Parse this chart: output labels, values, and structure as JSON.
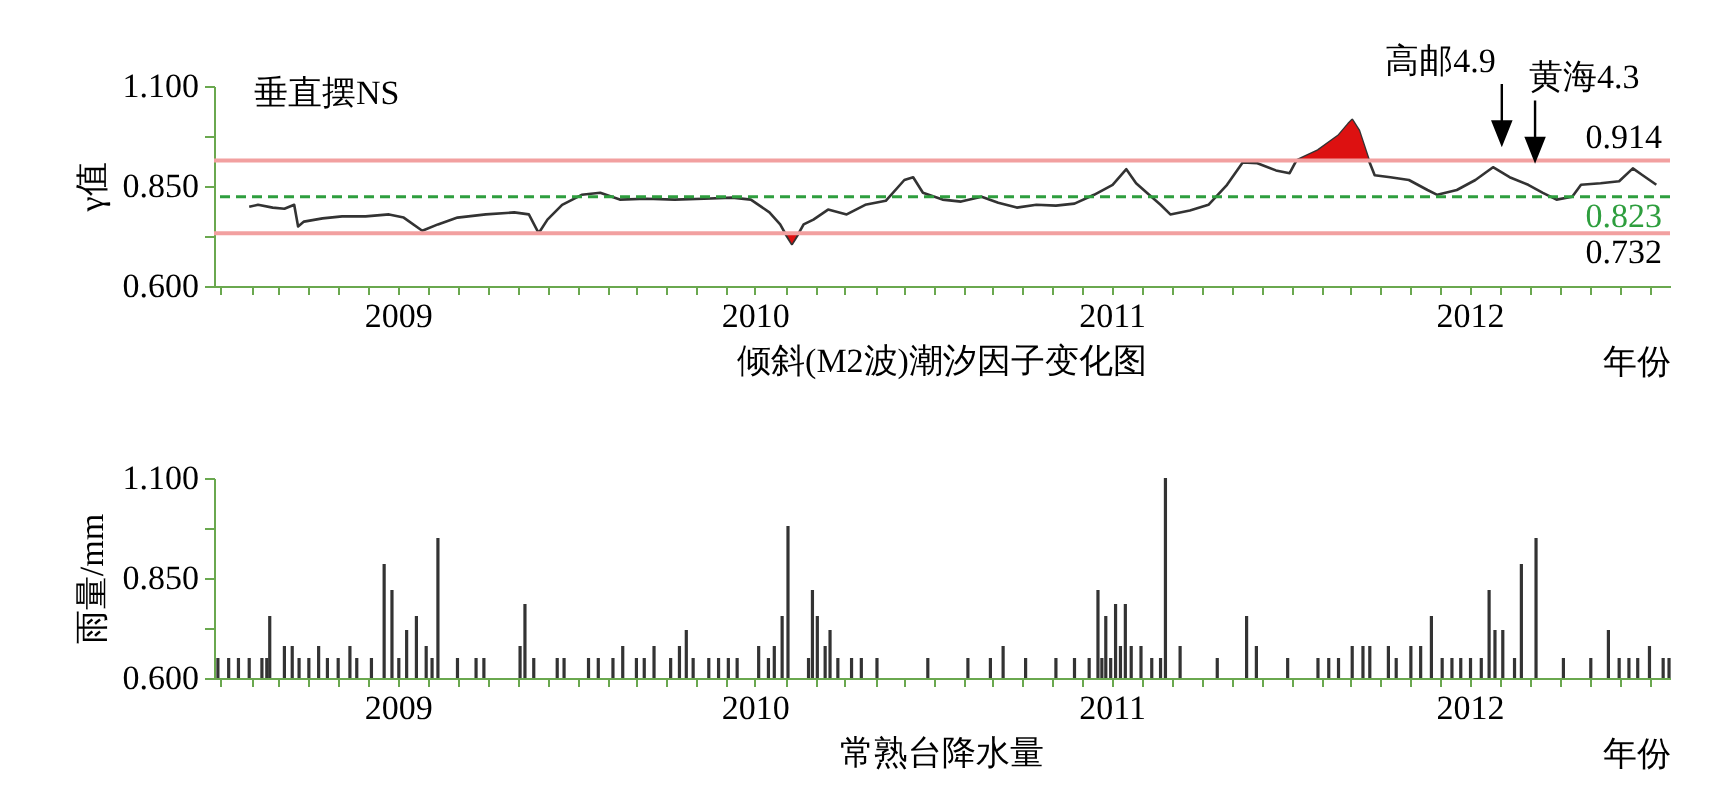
{
  "chart_data": [
    {
      "type": "line",
      "title": "倾斜(M2波)潮汐因子变化图",
      "xlabel": "年份",
      "ylabel": "γ值",
      "annotations": [
        "垂直摆NS",
        {
          "text": "高邮4.9",
          "x": "2012-08-03",
          "y": 0.885
        },
        {
          "text": "黄海4.3",
          "x": "2012-09-06",
          "y": 0.844
        }
      ],
      "xlim": [
        "2008-12-25",
        "2013-01-22"
      ],
      "xticks": [
        {
          "value": "2009-01-01",
          "label": null
        },
        {
          "value": "2009-02-01",
          "label": null
        },
        {
          "value": "2009-03-01",
          "label": null
        },
        {
          "value": "2009-04-01",
          "label": null
        },
        {
          "value": "2009-05-01",
          "label": null
        },
        {
          "value": "2009-06-01",
          "label": null
        },
        {
          "value": "2009-07-01",
          "label": "2009"
        },
        {
          "value": "2009-08-01",
          "label": null
        },
        {
          "value": "2009-09-01",
          "label": null
        },
        {
          "value": "2009-10-01",
          "label": null
        },
        {
          "value": "2009-11-01",
          "label": null
        },
        {
          "value": "2009-12-01",
          "label": null
        },
        {
          "value": "2010-01-01",
          "label": null
        },
        {
          "value": "2010-02-01",
          "label": null
        },
        {
          "value": "2010-03-01",
          "label": null
        },
        {
          "value": "2010-04-01",
          "label": null
        },
        {
          "value": "2010-05-01",
          "label": null
        },
        {
          "value": "2010-06-01",
          "label": null
        },
        {
          "value": "2010-07-01",
          "label": "2010"
        },
        {
          "value": "2010-08-01",
          "label": null
        },
        {
          "value": "2010-09-01",
          "label": null
        },
        {
          "value": "2010-10-01",
          "label": null
        },
        {
          "value": "2010-11-01",
          "label": null
        },
        {
          "value": "2010-12-01",
          "label": null
        },
        {
          "value": "2011-01-01",
          "label": null
        },
        {
          "value": "2011-02-01",
          "label": null
        },
        {
          "value": "2011-03-01",
          "label": null
        },
        {
          "value": "2011-04-01",
          "label": null
        },
        {
          "value": "2011-05-01",
          "label": null
        },
        {
          "value": "2011-06-01",
          "label": null
        },
        {
          "value": "2011-07-01",
          "label": "2011"
        },
        {
          "value": "2011-08-01",
          "label": null
        },
        {
          "value": "2011-09-01",
          "label": null
        },
        {
          "value": "2011-10-01",
          "label": null
        },
        {
          "value": "2011-11-01",
          "label": null
        },
        {
          "value": "2011-12-01",
          "label": null
        },
        {
          "value": "2012-01-01",
          "label": null
        },
        {
          "value": "2012-02-01",
          "label": null
        },
        {
          "value": "2012-03-01",
          "label": null
        },
        {
          "value": "2012-04-01",
          "label": null
        },
        {
          "value": "2012-05-01",
          "label": null
        },
        {
          "value": "2012-06-01",
          "label": null
        },
        {
          "value": "2012-07-01",
          "label": "2012"
        },
        {
          "value": "2012-08-01",
          "label": null
        },
        {
          "value": "2012-09-01",
          "label": null
        },
        {
          "value": "2012-10-01",
          "label": null
        },
        {
          "value": "2012-11-01",
          "label": null
        },
        {
          "value": "2012-12-01",
          "label": null
        },
        {
          "value": "2013-01-01",
          "label": null
        }
      ],
      "ylim": [
        0.6,
        1.1
      ],
      "yticks": [
        {
          "value": 0.6,
          "label": "0.600"
        },
        {
          "value": 0.725,
          "label": null
        },
        {
          "value": 0.85,
          "label": "0.850"
        },
        {
          "value": 0.975,
          "label": null
        },
        {
          "value": 1.1,
          "label": "1.100"
        }
      ],
      "ref_lines": [
        {
          "axis": "y",
          "value": 0.914,
          "label": "0.914",
          "color": "#f2a0a0"
        },
        {
          "axis": "y",
          "value": 0.823,
          "label": "0.823",
          "color": "#2e9e3e",
          "line_style": "dashed"
        },
        {
          "axis": "y",
          "value": 0.732,
          "label": "0.732",
          "color": "#f2a0a0"
        }
      ],
      "series": [
        {
          "type": "line",
          "color": "#333333",
          "x": [
            "2009-01-30",
            "2009-02-08",
            "2009-02-23",
            "2009-03-07",
            "2009-03-17",
            "2009-03-21",
            "2009-03-27",
            "2009-04-15",
            "2009-05-05",
            "2009-05-29",
            "2009-06-22",
            "2009-07-07",
            "2009-07-26",
            "2009-08-11",
            "2009-08-31",
            "2009-09-29",
            "2009-10-28",
            "2009-11-12",
            "2009-11-22",
            "2009-12-01",
            "2009-12-16",
            "2010-01-05",
            "2010-01-24",
            "2010-02-13",
            "2010-03-12",
            "2010-04-10",
            "2010-05-10",
            "2010-06-08",
            "2010-06-27",
            "2010-07-16",
            "2010-07-27",
            "2010-08-01",
            "2010-08-08",
            "2010-08-15",
            "2010-08-20",
            "2010-08-30",
            "2010-09-14",
            "2010-10-03",
            "2010-10-22",
            "2010-11-12",
            "2010-12-01",
            "2010-12-10",
            "2010-12-20",
            "2011-01-09",
            "2011-01-28",
            "2011-02-18",
            "2011-03-07",
            "2011-03-26",
            "2011-04-15",
            "2011-05-05",
            "2011-05-24",
            "2011-06-13",
            "2011-07-02",
            "2011-07-16",
            "2011-07-26",
            "2011-08-06",
            "2011-08-20",
            "2011-08-30",
            "2011-09-19",
            "2011-10-08",
            "2011-10-27",
            "2011-11-12",
            "2011-11-27",
            "2011-12-16",
            "2011-12-30",
            "2012-01-06",
            "2012-01-28",
            "2012-02-18",
            "2012-02-28",
            "2012-03-03",
            "2012-03-10",
            "2012-03-20",
            "2012-03-26",
            "2012-04-11",
            "2012-04-30",
            "2012-05-19",
            "2012-05-29",
            "2012-06-18",
            "2012-07-07",
            "2012-07-25",
            "2012-08-11",
            "2012-08-30",
            "2012-09-14",
            "2012-09-28",
            "2012-10-14",
            "2012-10-23",
            "2012-11-12",
            "2012-12-01",
            "2012-12-15",
            "2012-12-25",
            "2013-01-08"
          ],
          "values": [
            0.798,
            0.803,
            0.796,
            0.793,
            0.803,
            0.749,
            0.761,
            0.769,
            0.774,
            0.774,
            0.779,
            0.771,
            0.738,
            0.754,
            0.771,
            0.779,
            0.784,
            0.779,
            0.732,
            0.766,
            0.803,
            0.828,
            0.833,
            0.816,
            0.818,
            0.816,
            0.818,
            0.821,
            0.816,
            0.784,
            0.754,
            0.732,
            0.705,
            0.732,
            0.754,
            0.766,
            0.791,
            0.779,
            0.803,
            0.813,
            0.865,
            0.872,
            0.833,
            0.816,
            0.811,
            0.823,
            0.808,
            0.796,
            0.803,
            0.801,
            0.806,
            0.828,
            0.853,
            0.892,
            0.857,
            0.833,
            0.803,
            0.779,
            0.789,
            0.803,
            0.853,
            0.909,
            0.907,
            0.889,
            0.882,
            0.914,
            0.939,
            0.976,
            1.005,
            1.015,
            0.988,
            0.914,
            0.877,
            0.872,
            0.865,
            0.84,
            0.828,
            0.84,
            0.865,
            0.897,
            0.872,
            0.853,
            0.833,
            0.816,
            0.823,
            0.853,
            0.857,
            0.862,
            0.894,
            0.877,
            0.853
          ]
        },
        {
          "type": "area",
          "color": "#dd1111",
          "x": [
            "2012-01-06",
            "2012-01-28",
            "2012-02-18",
            "2012-02-28",
            "2012-03-03",
            "2012-03-10",
            "2012-03-20"
          ],
          "values": [
            0.914,
            0.939,
            0.976,
            1.005,
            1.015,
            0.988,
            0.914
          ]
        },
        {
          "type": "scatter",
          "color": "#dd1111",
          "marker": "triangle",
          "x": [
            "2010-08-08"
          ],
          "values": [
            0.72
          ]
        }
      ]
    },
    {
      "type": "bar",
      "title": "常熟台降水量",
      "xlabel": "年份",
      "ylabel": "雨量/mm",
      "color": "#333333",
      "xlim": [
        "2008-12-25",
        "2013-01-22"
      ],
      "xticks": [
        {
          "value": "2009-01-01",
          "label": null
        },
        {
          "value": "2009-02-01",
          "label": null
        },
        {
          "value": "2009-03-01",
          "label": null
        },
        {
          "value": "2009-04-01",
          "label": null
        },
        {
          "value": "2009-05-01",
          "label": null
        },
        {
          "value": "2009-06-01",
          "label": null
        },
        {
          "value": "2009-07-01",
          "label": "2009"
        },
        {
          "value": "2009-08-01",
          "label": null
        },
        {
          "value": "2009-09-01",
          "label": null
        },
        {
          "value": "2009-10-01",
          "label": null
        },
        {
          "value": "2009-11-01",
          "label": null
        },
        {
          "value": "2009-12-01",
          "label": null
        },
        {
          "value": "2010-01-01",
          "label": null
        },
        {
          "value": "2010-02-01",
          "label": null
        },
        {
          "value": "2010-03-01",
          "label": null
        },
        {
          "value": "2010-04-01",
          "label": null
        },
        {
          "value": "2010-05-01",
          "label": null
        },
        {
          "value": "2010-06-01",
          "label": null
        },
        {
          "value": "2010-07-01",
          "label": "2010"
        },
        {
          "value": "2010-08-01",
          "label": null
        },
        {
          "value": "2010-09-01",
          "label": null
        },
        {
          "value": "2010-10-01",
          "label": null
        },
        {
          "value": "2010-11-01",
          "label": null
        },
        {
          "value": "2010-12-01",
          "label": null
        },
        {
          "value": "2011-01-01",
          "label": null
        },
        {
          "value": "2011-02-01",
          "label": null
        },
        {
          "value": "2011-03-01",
          "label": null
        },
        {
          "value": "2011-04-01",
          "label": null
        },
        {
          "value": "2011-05-01",
          "label": null
        },
        {
          "value": "2011-06-01",
          "label": null
        },
        {
          "value": "2011-07-01",
          "label": "2011"
        },
        {
          "value": "2011-08-01",
          "label": null
        },
        {
          "value": "2011-09-01",
          "label": null
        },
        {
          "value": "2011-10-01",
          "label": null
        },
        {
          "value": "2011-11-01",
          "label": null
        },
        {
          "value": "2011-12-01",
          "label": null
        },
        {
          "value": "2012-01-01",
          "label": null
        },
        {
          "value": "2012-02-01",
          "label": null
        },
        {
          "value": "2012-03-01",
          "label": null
        },
        {
          "value": "2012-04-01",
          "label": null
        },
        {
          "value": "2012-05-01",
          "label": null
        },
        {
          "value": "2012-06-01",
          "label": null
        },
        {
          "value": "2012-07-01",
          "label": "2012"
        },
        {
          "value": "2012-08-01",
          "label": null
        },
        {
          "value": "2012-09-01",
          "label": null
        },
        {
          "value": "2012-10-01",
          "label": null
        },
        {
          "value": "2012-11-01",
          "label": null
        },
        {
          "value": "2012-12-01",
          "label": null
        },
        {
          "value": "2013-01-01",
          "label": null
        }
      ],
      "ylim": [
        0.6,
        1.1
      ],
      "yticks": [
        {
          "value": 0.6,
          "label": "0.600"
        },
        {
          "value": 0.725,
          "label": null
        },
        {
          "value": 0.85,
          "label": "0.850"
        },
        {
          "value": 0.975,
          "label": null
        },
        {
          "value": 1.1,
          "label": "1.100"
        }
      ],
      "x": [
        "2008-12-29",
        "2009-01-09",
        "2009-01-19",
        "2009-01-30",
        "2009-02-12",
        "2009-02-17",
        "2009-02-20",
        "2009-03-07",
        "2009-03-15",
        "2009-03-22",
        "2009-04-01",
        "2009-04-11",
        "2009-04-20",
        "2009-05-01",
        "2009-05-13",
        "2009-05-20",
        "2009-06-04",
        "2009-06-17",
        "2009-06-25",
        "2009-07-02",
        "2009-07-10",
        "2009-07-20",
        "2009-07-30",
        "2009-08-05",
        "2009-08-11",
        "2009-08-31",
        "2009-09-19",
        "2009-09-27",
        "2009-11-03",
        "2009-11-08",
        "2009-11-17",
        "2009-12-11",
        "2009-12-18",
        "2010-01-12",
        "2010-01-22",
        "2010-02-06",
        "2010-02-16",
        "2010-03-02",
        "2010-03-10",
        "2010-03-20",
        "2010-04-06",
        "2010-04-15",
        "2010-04-22",
        "2010-04-29",
        "2010-05-15",
        "2010-05-25",
        "2010-06-04",
        "2010-06-13",
        "2010-07-05",
        "2010-07-15",
        "2010-07-21",
        "2010-07-29",
        "2010-08-04",
        "2010-08-25",
        "2010-08-29",
        "2010-09-03",
        "2010-09-11",
        "2010-09-16",
        "2010-09-24",
        "2010-10-08",
        "2010-10-18",
        "2010-11-03",
        "2010-12-25",
        "2011-02-04",
        "2011-02-27",
        "2011-03-12",
        "2011-04-04",
        "2011-05-05",
        "2011-05-24",
        "2011-06-08",
        "2011-06-17",
        "2011-06-21",
        "2011-06-25",
        "2011-06-30",
        "2011-07-05",
        "2011-07-10",
        "2011-07-15",
        "2011-07-21",
        "2011-07-31",
        "2011-08-11",
        "2011-08-20",
        "2011-08-25",
        "2011-09-09",
        "2011-10-17",
        "2011-11-16",
        "2011-11-26",
        "2011-12-28",
        "2012-01-28",
        "2012-02-08",
        "2012-02-18",
        "2012-03-03",
        "2012-03-14",
        "2012-03-21",
        "2012-04-09",
        "2012-04-17",
        "2012-05-02",
        "2012-05-12",
        "2012-05-23",
        "2012-06-03",
        "2012-06-13",
        "2012-06-22",
        "2012-07-02",
        "2012-07-13",
        "2012-07-21",
        "2012-07-27",
        "2012-08-04",
        "2012-08-16",
        "2012-08-23",
        "2012-09-07",
        "2012-10-05",
        "2012-11-02",
        "2012-11-20",
        "2012-12-01",
        "2012-12-11",
        "2012-12-20",
        "2013-01-01",
        "2013-01-15",
        "2013-01-21"
      ],
      "values": [
        0.65,
        0.65,
        0.65,
        0.65,
        0.65,
        0.65,
        0.755,
        0.68,
        0.68,
        0.65,
        0.65,
        0.68,
        0.65,
        0.65,
        0.68,
        0.65,
        0.65,
        0.885,
        0.82,
        0.65,
        0.72,
        0.755,
        0.68,
        0.65,
        0.95,
        0.65,
        0.65,
        0.65,
        0.68,
        0.785,
        0.65,
        0.65,
        0.65,
        0.65,
        0.65,
        0.65,
        0.68,
        0.65,
        0.65,
        0.68,
        0.65,
        0.68,
        0.72,
        0.65,
        0.65,
        0.65,
        0.65,
        0.65,
        0.68,
        0.65,
        0.68,
        0.755,
        0.98,
        0.65,
        0.82,
        0.755,
        0.68,
        0.72,
        0.65,
        0.65,
        0.65,
        0.65,
        0.65,
        0.65,
        0.65,
        0.68,
        0.65,
        0.65,
        0.65,
        0.65,
        0.82,
        0.65,
        0.755,
        0.65,
        0.785,
        0.68,
        0.785,
        0.68,
        0.68,
        0.65,
        0.65,
        1.1,
        0.68,
        0.65,
        0.755,
        0.68,
        0.65,
        0.65,
        0.65,
        0.65,
        0.68,
        0.68,
        0.68,
        0.68,
        0.65,
        0.68,
        0.68,
        0.755,
        0.65,
        0.65,
        0.65,
        0.65,
        0.65,
        0.82,
        0.72,
        0.72,
        0.65,
        0.885,
        0.95,
        0.65,
        0.65,
        0.72,
        0.65,
        0.65,
        0.65,
        0.68,
        0.65,
        0.65
      ]
    }
  ]
}
